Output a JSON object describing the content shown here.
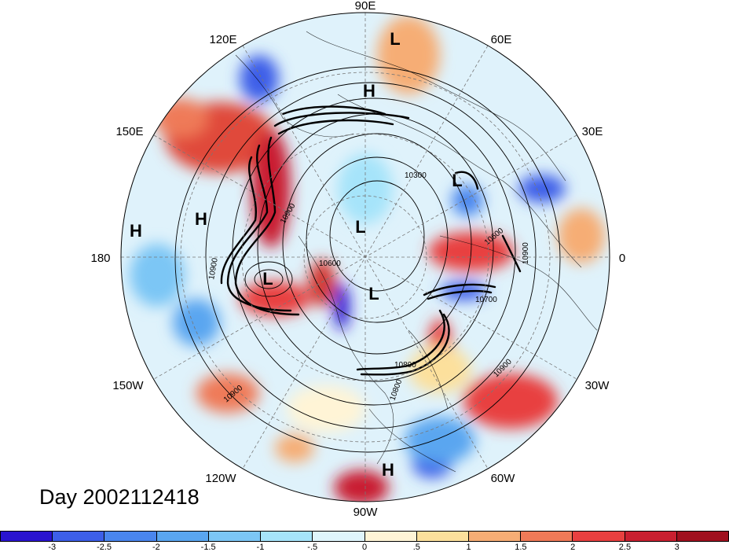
{
  "title": "Day 2002112418",
  "longitude_labels": [
    "90E",
    "60E",
    "30E",
    "0",
    "30W",
    "60W",
    "90W",
    "120W",
    "150W",
    "180",
    "150E",
    "120E"
  ],
  "pressure_centers": [
    {
      "type": "L",
      "lon": 85
    },
    {
      "type": "H",
      "lon": 90
    },
    {
      "type": "L",
      "lon": 35
    },
    {
      "type": "L",
      "lon": 110
    },
    {
      "type": "H",
      "lon": 160
    },
    {
      "type": "H",
      "lon": 175
    },
    {
      "type": "L",
      "lon": -170
    },
    {
      "type": "L",
      "lon": -110
    },
    {
      "type": "H",
      "lon": -85
    }
  ],
  "contour_labels": [
    "10300",
    "10900",
    "10600",
    "10900",
    "10600",
    "10700",
    "10900",
    "10800",
    "10900",
    "10900",
    "10800"
  ],
  "colorbar": {
    "ticks": [
      "-3",
      "-2.5",
      "-2",
      "-1.5",
      "-1",
      "-.5",
      "0",
      ".5",
      "1",
      "1.5",
      "2",
      "2.5",
      "3"
    ],
    "colors": [
      "#2a14d0",
      "#3d5fe8",
      "#4a86ee",
      "#5aa6f0",
      "#7cc6f5",
      "#a6e4fa",
      "#dff5fc",
      "#fff4d6",
      "#fce09c",
      "#f6ad75",
      "#ef7a58",
      "#e84040",
      "#c91f30",
      "#a0101e"
    ]
  }
}
